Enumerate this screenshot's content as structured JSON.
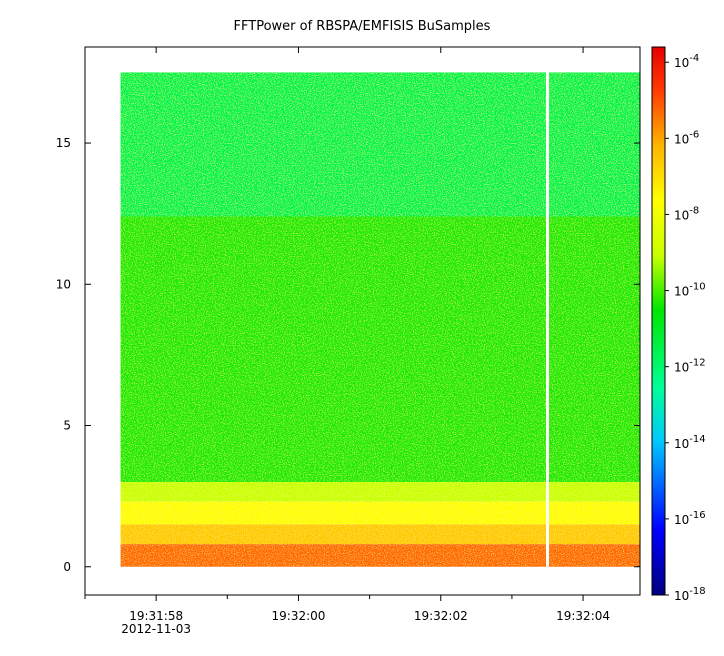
{
  "chart_data": {
    "type": "heatmap",
    "title": "FFTPower of RBSPA/EMFISIS  BuSamples",
    "xlabel": "",
    "ylabel": "",
    "x_ticks": [
      {
        "label": "19:31:58",
        "sub": "2012-11-03"
      },
      {
        "label": "19:32:00",
        "sub": ""
      },
      {
        "label": "19:32:02",
        "sub": ""
      },
      {
        "label": "19:32:04",
        "sub": ""
      }
    ],
    "x_range_seconds": [
      -1.0,
      6.8
    ],
    "x_major_tick_seconds": [
      0,
      2,
      4,
      6
    ],
    "x_minor_tick_seconds": [
      -1,
      1,
      3,
      5
    ],
    "data_x_range_seconds": [
      -0.5,
      6.8
    ],
    "gap_x_seconds": 5.5,
    "y_ticks": [
      "0",
      "5",
      "10",
      "15"
    ],
    "y_tick_values": [
      0,
      5,
      10,
      15
    ],
    "ylim": [
      -1,
      18.4
    ],
    "data_y_range": [
      0,
      17.5
    ],
    "colorbar": {
      "scale": "log",
      "range_exponents": [
        -18,
        -3.6
      ],
      "tick_exponents": [
        -4,
        -6,
        -8,
        -10,
        -12,
        -14,
        -16,
        -18
      ],
      "tick_labels": [
        {
          "base": "10",
          "exp": "-4"
        },
        {
          "base": "10",
          "exp": "-6"
        },
        {
          "base": "10",
          "exp": "-8"
        },
        {
          "base": "10",
          "exp": "-10"
        },
        {
          "base": "10",
          "exp": "-12"
        },
        {
          "base": "10",
          "exp": "-14"
        },
        {
          "base": "10",
          "exp": "-16"
        },
        {
          "base": "10",
          "exp": "-18"
        }
      ]
    },
    "bands": [
      {
        "y_from": 12.4,
        "y_to": 17.5,
        "log_power": -11.6
      },
      {
        "y_from": 3.0,
        "y_to": 12.4,
        "log_power": -10.3
      },
      {
        "y_from": 2.3,
        "y_to": 3.0,
        "log_power": -9.0
      },
      {
        "y_from": 1.5,
        "y_to": 2.3,
        "log_power": -7.6
      },
      {
        "y_from": 0.8,
        "y_to": 1.5,
        "log_power": -6.6
      },
      {
        "y_from": 0.0,
        "y_to": 0.8,
        "log_power": -5.3
      }
    ],
    "colors": {
      "gap": "#ffffff",
      "axis": "#000000"
    }
  }
}
